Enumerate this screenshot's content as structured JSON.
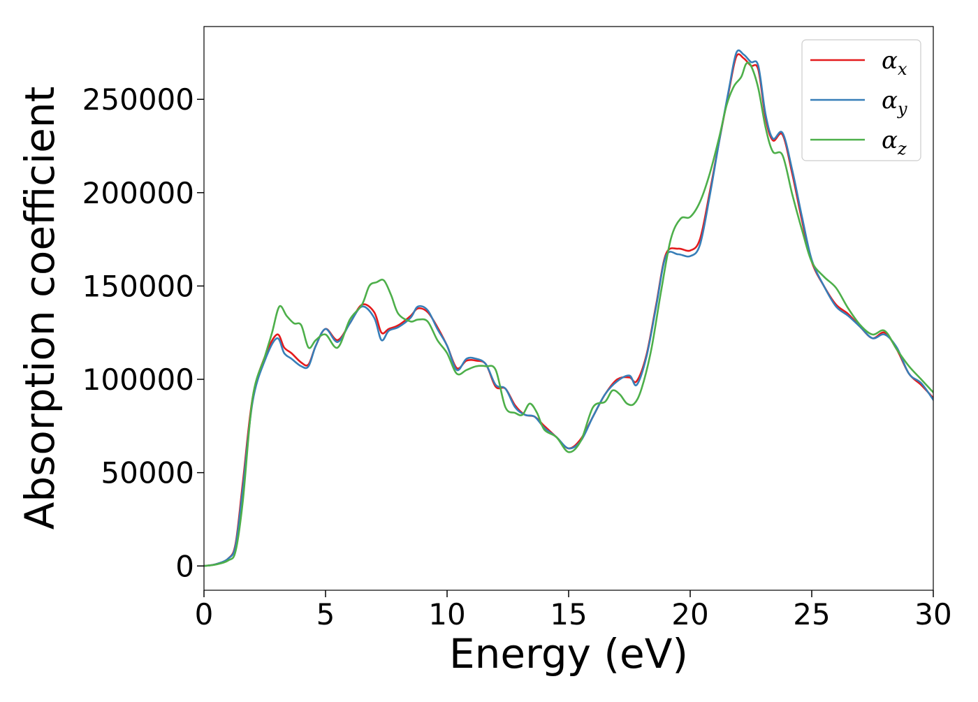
{
  "chart_data": {
    "type": "line",
    "title": "",
    "xlabel": "Energy (eV)",
    "ylabel": "Absorption coefficient",
    "xlim": [
      0,
      30
    ],
    "ylim": [
      -13000,
      289000
    ],
    "xticks": [
      0,
      5,
      10,
      15,
      20,
      25,
      30
    ],
    "xtick_labels": [
      "0",
      "5",
      "10",
      "15",
      "20",
      "25",
      "30"
    ],
    "yticks": [
      0,
      50000,
      100000,
      150000,
      200000,
      250000
    ],
    "ytick_labels": [
      "0",
      "50000",
      "100000",
      "150000",
      "200000",
      "250000"
    ],
    "grid": false,
    "legend": "top-right",
    "series": [
      {
        "name": "α",
        "subscript": "x",
        "color": "#e41a1c",
        "x": [
          0,
          0.5,
          1,
          1.3,
          1.6,
          2,
          2.5,
          3,
          3.3,
          3.6,
          4,
          4.3,
          4.6,
          5,
          5.5,
          6,
          6.5,
          7,
          7.3,
          7.6,
          8,
          8.5,
          8.8,
          9.2,
          9.6,
          10,
          10.4,
          10.8,
          11.2,
          11.6,
          12,
          12.4,
          12.8,
          13.2,
          13.6,
          14,
          14.5,
          15,
          15.5,
          16,
          16.5,
          17,
          17.5,
          17.8,
          18.2,
          18.6,
          19,
          19.5,
          20,
          20.4,
          20.8,
          21.2,
          21.6,
          21.9,
          22.2,
          22.5,
          22.8,
          23.1,
          23.4,
          23.8,
          24.2,
          24.6,
          25,
          25.5,
          26,
          26.5,
          27,
          27.5,
          28,
          28.5,
          29,
          29.5,
          30
        ],
        "y": [
          0,
          1000,
          4000,
          12000,
          45000,
          90000,
          112000,
          124000,
          117000,
          114000,
          109000,
          108000,
          118000,
          127000,
          121000,
          130000,
          140000,
          136000,
          125000,
          127000,
          129000,
          134000,
          138000,
          136000,
          128000,
          118000,
          106000,
          110000,
          110000,
          108000,
          96000,
          95000,
          86000,
          81000,
          80000,
          75000,
          69000,
          63000,
          68000,
          80000,
          92000,
          100000,
          101000,
          99000,
          113000,
          140000,
          167000,
          170000,
          169000,
          175000,
          200000,
          228000,
          255000,
          273000,
          272000,
          268000,
          266000,
          240000,
          228000,
          231000,
          210000,
          185000,
          163000,
          150000,
          140000,
          135000,
          128000,
          122000,
          125000,
          116000,
          103000,
          97000,
          90000
        ]
      },
      {
        "name": "α",
        "subscript": "y",
        "color": "#377eb8",
        "x": [
          0,
          0.5,
          1,
          1.3,
          1.6,
          2,
          2.5,
          3,
          3.3,
          3.6,
          4,
          4.3,
          4.6,
          5,
          5.5,
          6,
          6.5,
          7,
          7.3,
          7.6,
          8,
          8.5,
          8.8,
          9.2,
          9.6,
          10,
          10.4,
          10.8,
          11.2,
          11.6,
          12,
          12.4,
          12.8,
          13.2,
          13.6,
          14,
          14.5,
          15,
          15.5,
          16,
          16.5,
          17,
          17.5,
          17.8,
          18.2,
          18.6,
          19,
          19.5,
          20,
          20.4,
          20.8,
          21.2,
          21.6,
          21.9,
          22.2,
          22.5,
          22.8,
          23.1,
          23.4,
          23.8,
          24.2,
          24.6,
          25,
          25.5,
          26,
          26.5,
          27,
          27.5,
          28,
          28.5,
          29,
          29.5,
          30
        ],
        "y": [
          0,
          1000,
          4000,
          11000,
          42000,
          88000,
          110000,
          122000,
          114000,
          111000,
          107000,
          107000,
          118000,
          127000,
          120000,
          130000,
          139000,
          133000,
          121000,
          126000,
          128000,
          133000,
          139000,
          137000,
          127000,
          118000,
          105000,
          111000,
          111000,
          108000,
          97000,
          95000,
          85000,
          81000,
          80000,
          74000,
          69000,
          63000,
          67000,
          80000,
          92000,
          99000,
          102000,
          97000,
          112000,
          139000,
          166000,
          167000,
          166000,
          172000,
          198000,
          228000,
          256000,
          275000,
          274000,
          270000,
          268000,
          242000,
          229000,
          232000,
          212000,
          187000,
          164000,
          150000,
          139000,
          134000,
          128000,
          122000,
          124000,
          117000,
          103000,
          98000,
          89000
        ]
      },
      {
        "name": "α",
        "subscript": "z",
        "color": "#4daf4a",
        "x": [
          0,
          0.5,
          1,
          1.3,
          1.6,
          2,
          2.5,
          2.8,
          3.1,
          3.4,
          3.7,
          4,
          4.3,
          4.6,
          5,
          5.5,
          6,
          6.5,
          6.8,
          7.1,
          7.4,
          7.7,
          8,
          8.5,
          8.8,
          9.2,
          9.6,
          10,
          10.4,
          10.8,
          11.2,
          11.6,
          12,
          12.4,
          12.8,
          13.1,
          13.4,
          13.7,
          14,
          14.5,
          15,
          15.5,
          16,
          16.5,
          16.8,
          17.1,
          17.4,
          17.7,
          18,
          18.4,
          18.8,
          19.2,
          19.6,
          20,
          20.4,
          20.8,
          21.2,
          21.5,
          21.8,
          22.1,
          22.3,
          22.5,
          22.8,
          23.1,
          23.4,
          23.8,
          24.2,
          24.6,
          25,
          25.5,
          26,
          26.5,
          27,
          27.5,
          28,
          28.5,
          29,
          29.5,
          30
        ],
        "y": [
          0,
          800,
          3000,
          8000,
          35000,
          90000,
          112000,
          125000,
          139000,
          134000,
          130000,
          129000,
          117000,
          121000,
          124000,
          117000,
          132000,
          140000,
          150000,
          152000,
          153000,
          145000,
          135000,
          131000,
          132000,
          131000,
          121000,
          114000,
          103000,
          105000,
          107000,
          107000,
          105000,
          85000,
          82000,
          81000,
          87000,
          82000,
          73000,
          69000,
          61000,
          67000,
          85000,
          88000,
          94000,
          92000,
          87000,
          87000,
          95000,
          116000,
          147000,
          175000,
          186000,
          187000,
          195000,
          210000,
          230000,
          247000,
          257000,
          262000,
          269000,
          268000,
          256000,
          235000,
          222000,
          220000,
          199000,
          180000,
          163000,
          155000,
          149000,
          138000,
          129000,
          124000,
          126000,
          116000,
          107000,
          100000,
          93000
        ]
      }
    ]
  }
}
